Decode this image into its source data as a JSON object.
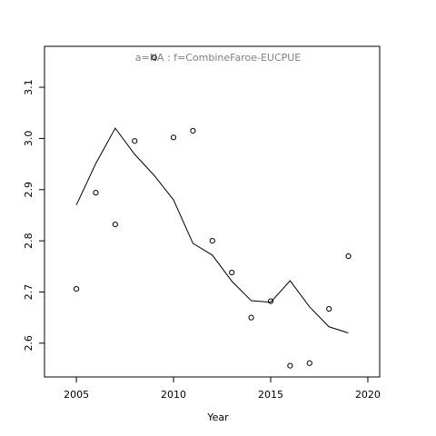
{
  "chart_data": {
    "type": "scatter-line",
    "title": "a=NA  :  f=CombineFaroe-EUCPUE",
    "title_color": "#808080",
    "x_label": "Year",
    "x": [
      2005,
      2006,
      2007,
      2008,
      2009,
      2010,
      2011,
      2012,
      2013,
      2014,
      2015,
      2016,
      2017,
      2018,
      2019
    ],
    "series": [
      {
        "mode": "points",
        "color": "#000000",
        "values": [
          2.706,
          2.894,
          2.832,
          2.995,
          3.158,
          3.002,
          3.015,
          2.8,
          2.738,
          2.65,
          2.682,
          2.556,
          2.561,
          2.667,
          2.77
        ]
      },
      {
        "mode": "line",
        "color": "#000000",
        "values": [
          2.87,
          2.951,
          3.02,
          2.969,
          2.928,
          2.88,
          2.795,
          2.772,
          2.721,
          2.683,
          2.68,
          2.722,
          2.671,
          2.632,
          2.62
        ]
      }
    ],
    "xlim": [
      2003.36,
      2020.61
    ],
    "xticks": [
      2005,
      2010,
      2015,
      2020
    ],
    "ylim": [
      2.534,
      3.18
    ],
    "yticks": [
      2.6,
      {
        "value": 2.7,
        "label": "2.7"
      },
      {
        "value": 2.8,
        "label": "2.8"
      },
      {
        "value": 2.9,
        "label": "2.9"
      },
      {
        "value": 3.0,
        "label": "3.0"
      },
      {
        "value": 3.1,
        "label": "3.1"
      }
    ]
  }
}
